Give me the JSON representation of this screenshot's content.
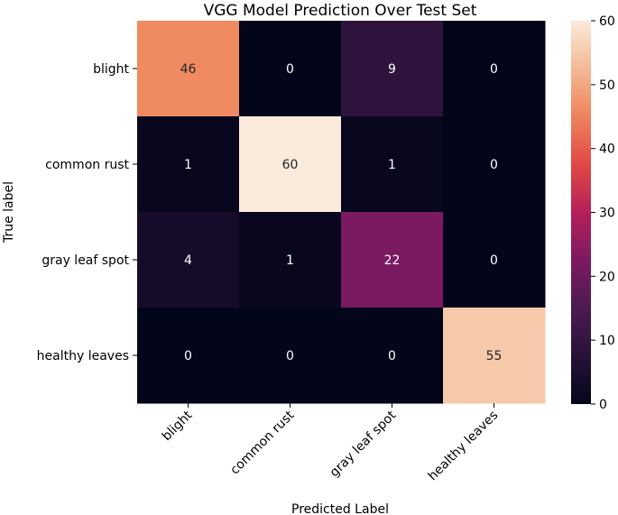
{
  "chart_data": {
    "type": "heatmap",
    "title": "VGG Model Prediction Over Test Set",
    "xlabel": "Predicted Label",
    "ylabel": "True label",
    "x_categories": [
      "blight",
      "common rust",
      "gray leaf spot",
      "healthy leaves"
    ],
    "y_categories": [
      "blight",
      "common rust",
      "gray leaf spot",
      "healthy leaves"
    ],
    "matrix": [
      [
        46,
        0,
        9,
        0
      ],
      [
        1,
        60,
        1,
        0
      ],
      [
        4,
        1,
        22,
        0
      ],
      [
        0,
        0,
        0,
        55
      ]
    ],
    "colorbar": {
      "range": [
        0,
        60
      ],
      "ticks": [
        0,
        10,
        20,
        30,
        40,
        50,
        60
      ],
      "colormap": "rocket"
    }
  }
}
